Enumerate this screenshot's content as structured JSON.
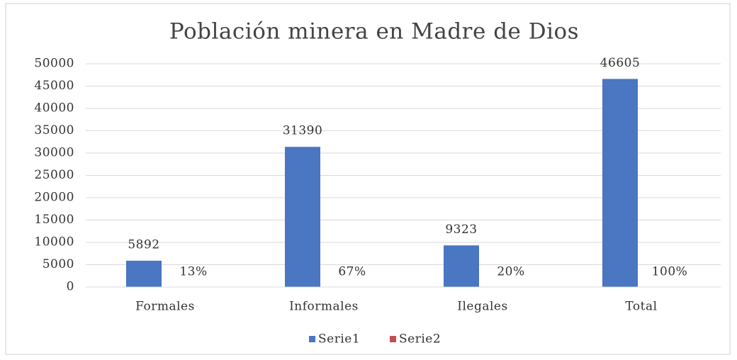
{
  "chart_data": {
    "type": "bar",
    "title": "Población minera en Madre de Dios",
    "categories": [
      "Formales",
      "Informales",
      "Ilegales",
      "Total"
    ],
    "series": [
      {
        "name": "Serie1",
        "color": "#4a76c2",
        "values": [
          5892,
          31390,
          9323,
          46605
        ]
      },
      {
        "name": "Serie2",
        "color": "#c0504d",
        "values": [
          0.13,
          0.67,
          0.2,
          1
        ],
        "value_labels": [
          "13%",
          "67%",
          "20%",
          "100%"
        ]
      }
    ],
    "ylim": [
      0,
      50000
    ],
    "yticks": [
      0,
      5000,
      10000,
      15000,
      20000,
      25000,
      30000,
      35000,
      40000,
      45000,
      50000
    ],
    "grid": true,
    "legend": "bottom"
  }
}
